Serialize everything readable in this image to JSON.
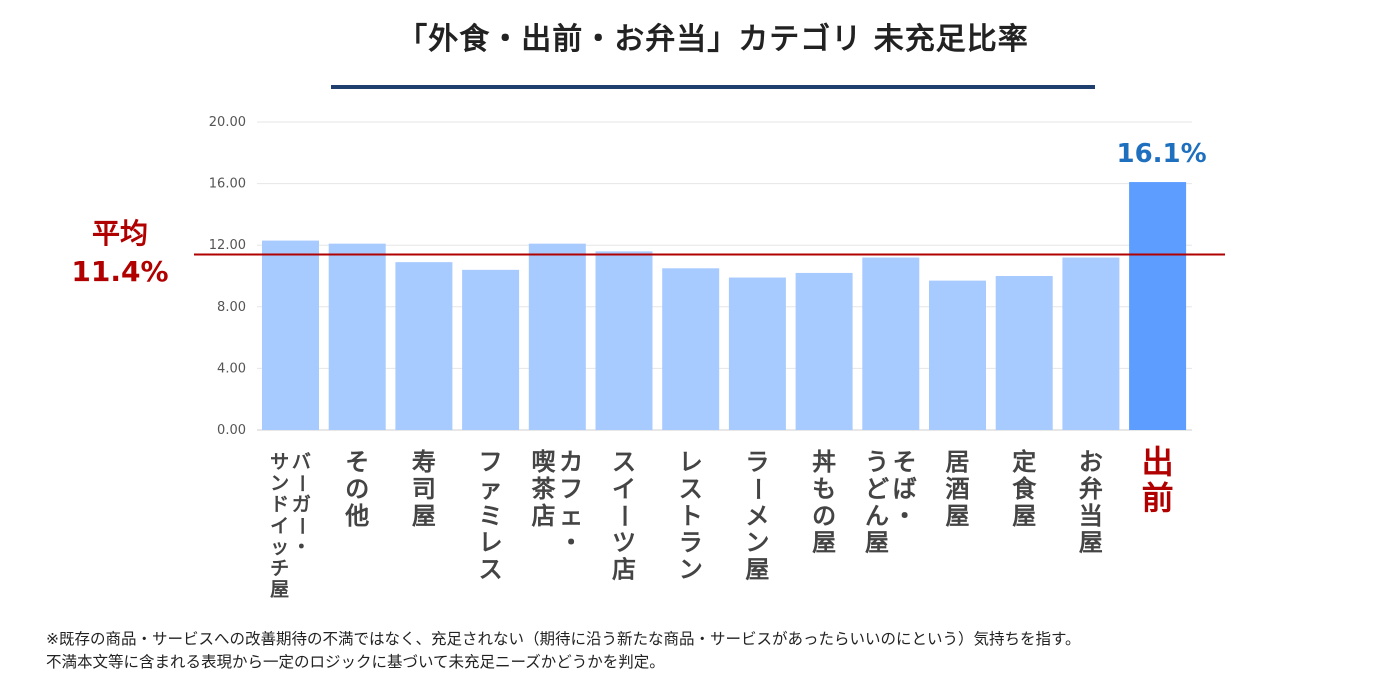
{
  "chart_data": {
    "type": "bar",
    "title": "「外食・出前・お弁当」カテゴリ 未充足比率",
    "categories": [
      "バーガー・サンドイッチ屋",
      "その他",
      "寿司屋",
      "ファミレス",
      "カフェ・喫茶店",
      "スイーツ店",
      "レストラン",
      "ラーメン屋",
      "丼もの屋",
      "そば・うどん屋",
      "居酒屋",
      "定食屋",
      "お弁当屋",
      "出前"
    ],
    "values": [
      12.3,
      12.1,
      10.9,
      10.4,
      12.1,
      11.6,
      10.5,
      9.9,
      10.2,
      11.2,
      9.7,
      10.0,
      11.2,
      16.1
    ],
    "highlight_index": 13,
    "highlight_value_label": "16.1%",
    "ylim": [
      0,
      20
    ],
    "yticks": [
      "0.00",
      "4.00",
      "8.00",
      "12.00",
      "16.00",
      "20.00"
    ],
    "grid": true,
    "average": {
      "value": 11.4,
      "label_line1": "平均",
      "label_line2": "11.4%"
    },
    "colors": {
      "bar": "#a8cbff",
      "highlight_bar": "#5c9dff",
      "average_line": "#b00000",
      "highlight_label": "#1f6fbf",
      "highlight_category": "#b00000"
    }
  },
  "footnote": {
    "line1": "※既存の商品・サービスへの改善期待の不満ではなく、充足されない（期待に沿う新たな商品・サービスがあったらいいのにという）気持ちを指す。",
    "line2": "不満本文等に含まれる表現から一定のロジックに基づいて未充足ニーズかどうかを判定。"
  }
}
